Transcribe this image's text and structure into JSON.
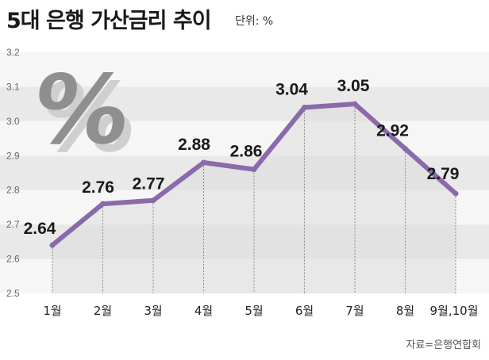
{
  "header": {
    "title": "5대 은행 가산금리 추이",
    "unit": "단위: %"
  },
  "footer": {
    "source": "자료=은행연합회"
  },
  "decoration": {
    "percent_graphic": "%"
  },
  "colors": {
    "line": "#8a6aab",
    "band_dark": "#e9e9e9",
    "band_light": "#f6f6f6",
    "area": "#dcdcdc"
  },
  "chart_data": {
    "type": "line",
    "title": "5대 은행 가산금리 추이",
    "unit": "%",
    "categories": [
      "1월",
      "2월",
      "3월",
      "4월",
      "5월",
      "6월",
      "7월",
      "8월",
      "9월,10월"
    ],
    "values": [
      2.64,
      2.76,
      2.77,
      2.88,
      2.86,
      3.04,
      3.05,
      2.92,
      2.79
    ],
    "data_labels": [
      "2.64",
      "2.76",
      "2.77",
      "2.88",
      "2.86",
      "3.04",
      "3.05",
      "2.92",
      "2.79"
    ],
    "yticks": [
      "2.5",
      "2.6",
      "2.7",
      "2.8",
      "2.9",
      "3.0",
      "3.1",
      "3.2"
    ],
    "ylim": [
      2.5,
      3.2
    ],
    "grid": true
  }
}
